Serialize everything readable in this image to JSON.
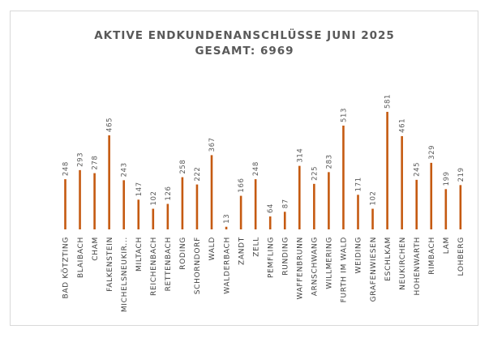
{
  "chart_data": {
    "type": "bar",
    "title": "AKTIVE ENDKUNDENANSCHLÜSSE JUNI 2025",
    "subtitle": "GESAMT: 6969",
    "xlabel": "",
    "ylabel": "",
    "ylim": [
      0,
      600
    ],
    "grid": false,
    "legend": "none",
    "bar_color": "#C55A11",
    "categories": [
      "BAD KÖTZTING",
      "BLAIBACH",
      "CHAM",
      "FALKENSTEIN",
      "MICHELSNEUKIR...",
      "MILTACH",
      "REICHENBACH",
      "RETTENBACH",
      "RODING",
      "SCHORNDORF",
      "WALD",
      "WALDERBACH",
      "ZANDT",
      "ZELL",
      "PEMFLING",
      "RUNDING",
      "WAFFENBRUNN",
      "ARNSCHWANG",
      "WILLMERING",
      "FURTH IM WALD",
      "WEIDING",
      "GRAFENWIESEN",
      "ESCHLKAM",
      "NEUKIRCHEN",
      "HOHENWARTH",
      "RIMBACH",
      "LAM",
      "LOHBERG"
    ],
    "values": [
      248,
      293,
      278,
      465,
      243,
      147,
      102,
      126,
      258,
      222,
      367,
      13,
      166,
      248,
      64,
      87,
      314,
      225,
      283,
      513,
      171,
      102,
      581,
      461,
      245,
      329,
      199,
      219
    ]
  }
}
